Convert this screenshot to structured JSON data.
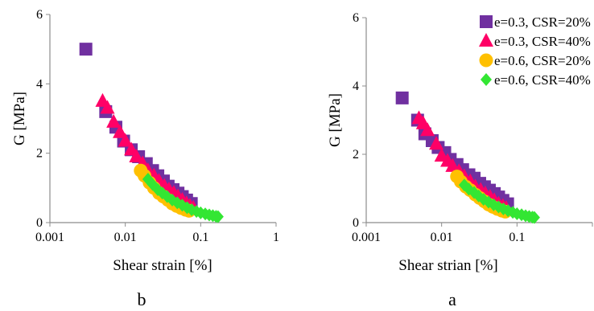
{
  "chart_data": [
    {
      "type": "scatter",
      "panel_label": "b",
      "xlabel": "Shear strain [%]",
      "ylabel": "G [MPa]",
      "xscale": "log",
      "xlim": [
        0.001,
        1
      ],
      "ylim": [
        0,
        6
      ],
      "x_ticks": [
        0.001,
        0.01,
        0.1,
        1
      ],
      "x_tick_labels": [
        "0.001",
        "0.01",
        "0.1",
        "1"
      ],
      "y_ticks": [
        0,
        2,
        4,
        6
      ],
      "y_tick_labels": [
        "0",
        "2",
        "4",
        "6"
      ],
      "grid": false,
      "legend": null,
      "series": [
        {
          "name": "e=0.3, CSR=20%",
          "color": "#7030A0",
          "marker": "square",
          "x": [
            0.003,
            0.0055,
            0.0075,
            0.0095,
            0.012,
            0.015,
            0.019,
            0.023,
            0.027,
            0.032,
            0.037,
            0.043,
            0.05,
            0.057,
            0.065,
            0.075
          ],
          "y": [
            5.0,
            3.2,
            2.75,
            2.35,
            2.1,
            1.9,
            1.7,
            1.5,
            1.35,
            1.2,
            1.05,
            0.95,
            0.85,
            0.75,
            0.65,
            0.55
          ]
        },
        {
          "name": "e=0.3, CSR=40%",
          "color": "#FF0066",
          "marker": "triangle",
          "x": [
            0.005,
            0.0058,
            0.007,
            0.0085,
            0.01,
            0.012,
            0.014,
            0.017,
            0.02,
            0.024,
            0.028,
            0.033,
            0.038,
            0.044,
            0.05,
            0.057,
            0.065,
            0.072,
            0.08
          ],
          "y": [
            3.5,
            3.3,
            2.9,
            2.6,
            2.35,
            2.1,
            1.9,
            1.7,
            1.5,
            1.35,
            1.2,
            1.05,
            0.95,
            0.85,
            0.75,
            0.65,
            0.55,
            0.48,
            0.42
          ]
        },
        {
          "name": "e=0.6, CSR=20%",
          "color": "#FFC000",
          "marker": "circle",
          "x": [
            0.016,
            0.018,
            0.021,
            0.024,
            0.028,
            0.032,
            0.037,
            0.042,
            0.048,
            0.055,
            0.063,
            0.07
          ],
          "y": [
            1.5,
            1.35,
            1.15,
            1.0,
            0.85,
            0.75,
            0.65,
            0.55,
            0.48,
            0.42,
            0.37,
            0.34
          ]
        },
        {
          "name": "e=0.6, CSR=40%",
          "color": "#33E633",
          "marker": "diamond",
          "x": [
            0.02,
            0.023,
            0.027,
            0.031,
            0.036,
            0.042,
            0.049,
            0.057,
            0.066,
            0.076,
            0.088,
            0.1,
            0.115,
            0.13,
            0.145,
            0.16,
            0.17
          ],
          "y": [
            1.25,
            1.1,
            0.95,
            0.85,
            0.75,
            0.65,
            0.57,
            0.5,
            0.43,
            0.37,
            0.32,
            0.28,
            0.25,
            0.22,
            0.2,
            0.18,
            0.17
          ]
        }
      ]
    },
    {
      "type": "scatter",
      "panel_label": "a",
      "xlabel": "Shear strian [%]",
      "ylabel": "G [MPa]",
      "xscale": "log",
      "xlim": [
        0.001,
        1
      ],
      "ylim": [
        0,
        6
      ],
      "x_ticks": [
        0.001,
        0.01,
        0.1,
        1
      ],
      "x_tick_labels": [
        "0.001",
        "0.01",
        "0.1",
        ""
      ],
      "y_ticks": [
        0,
        2,
        4,
        6
      ],
      "y_tick_labels": [
        "0",
        "2",
        "4",
        "6"
      ],
      "grid": false,
      "legend": "top-right",
      "series": [
        {
          "name": "e=0.3, CSR=20%",
          "color": "#7030A0",
          "marker": "square",
          "x": [
            0.003,
            0.0048,
            0.006,
            0.0075,
            0.009,
            0.011,
            0.013,
            0.016,
            0.019,
            0.023,
            0.027,
            0.032,
            0.037,
            0.043,
            0.05,
            0.057,
            0.065,
            0.075
          ],
          "y": [
            3.65,
            3.0,
            2.6,
            2.4,
            2.2,
            2.05,
            1.85,
            1.7,
            1.55,
            1.4,
            1.3,
            1.15,
            1.05,
            0.95,
            0.85,
            0.75,
            0.65,
            0.55
          ]
        },
        {
          "name": "e=0.3, CSR=40%",
          "color": "#FF0066",
          "marker": "triangle",
          "x": [
            0.005,
            0.0057,
            0.0065,
            0.0085,
            0.01,
            0.012,
            0.014,
            0.017,
            0.02,
            0.024,
            0.028,
            0.033,
            0.038,
            0.044,
            0.05,
            0.057,
            0.065,
            0.072
          ],
          "y": [
            3.05,
            2.9,
            2.7,
            2.3,
            1.95,
            1.8,
            1.65,
            1.5,
            1.35,
            1.2,
            1.05,
            0.95,
            0.85,
            0.75,
            0.65,
            0.55,
            0.48,
            0.42
          ]
        },
        {
          "name": "e=0.6, CSR=20%",
          "color": "#FFC000",
          "marker": "circle",
          "x": [
            0.016,
            0.018,
            0.021,
            0.024,
            0.028,
            0.032,
            0.037,
            0.042,
            0.048,
            0.055,
            0.063,
            0.07
          ],
          "y": [
            1.35,
            1.2,
            1.05,
            0.95,
            0.82,
            0.72,
            0.62,
            0.53,
            0.46,
            0.4,
            0.35,
            0.32
          ]
        },
        {
          "name": "e=0.6, CSR=40%",
          "color": "#33E633",
          "marker": "diamond",
          "x": [
            0.02,
            0.023,
            0.027,
            0.031,
            0.036,
            0.042,
            0.049,
            0.057,
            0.066,
            0.076,
            0.088,
            0.1,
            0.115,
            0.13,
            0.145,
            0.16,
            0.17
          ],
          "y": [
            1.1,
            0.98,
            0.88,
            0.78,
            0.68,
            0.6,
            0.52,
            0.46,
            0.4,
            0.35,
            0.3,
            0.26,
            0.23,
            0.2,
            0.18,
            0.16,
            0.15
          ]
        }
      ]
    }
  ]
}
